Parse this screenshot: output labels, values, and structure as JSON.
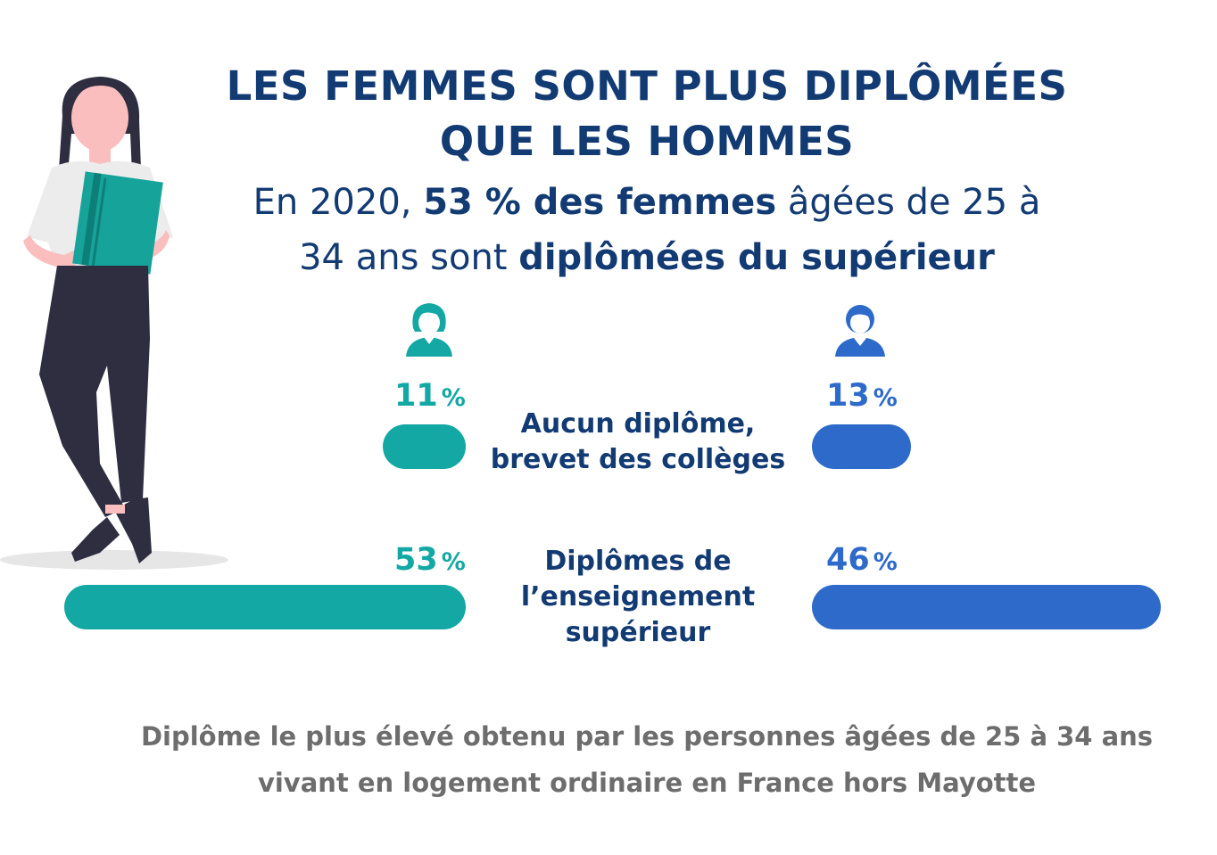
{
  "title": {
    "line1": "LES FEMMES SONT PLUS DIPLÔMÉES",
    "line2": "QUE LES HOMMES"
  },
  "subtitle": {
    "l1_a": "En 2020, ",
    "l1_b": "53 % des femmes",
    "l1_c": " âgées de 25 à",
    "l2_a": "34 ans sont ",
    "l2_b": "diplômées du supérieur"
  },
  "icons": {
    "women": "woman-icon",
    "men": "man-icon",
    "illustration": "woman-with-book-illustration"
  },
  "colors": {
    "women": "#13a8a4",
    "men": "#2d6ac9",
    "title": "#123a73",
    "note": "#6d6d6d"
  },
  "chart_data": {
    "type": "bar",
    "categories": [
      "Aucun diplôme, brevet des collèges",
      "Diplômes de l’enseignement supérieur"
    ],
    "series": [
      {
        "values": [
          11,
          53
        ]
      },
      {
        "values": [
          13,
          46
        ]
      }
    ],
    "unit": "%"
  },
  "labels": {
    "w0_value": "11",
    "m0_value": "13",
    "w1_value": "53",
    "m1_value": "46",
    "unit": "%",
    "cat0_line1": "Aucun diplôme,",
    "cat0_line2": "brevet des collèges",
    "cat1_line1": "Diplômes de",
    "cat1_line2": "l’enseignement",
    "cat1_line3": "supérieur"
  },
  "note": {
    "line1": "Diplôme le plus élevé obtenu par les personnes âgées de 25 à 34 ans",
    "line2": "vivant en logement ordinaire en France hors Mayotte"
  }
}
